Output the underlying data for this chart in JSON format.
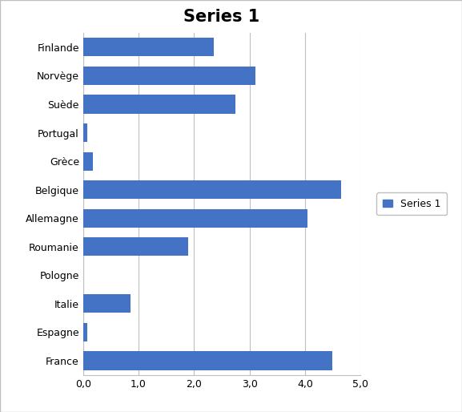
{
  "title": "Series 1",
  "title_fontsize": 15,
  "title_fontweight": "bold",
  "categories": [
    "France",
    "Espagne",
    "Italie",
    "Pologne",
    "Roumanie",
    "Allemagne",
    "Belgique",
    "Grèce",
    "Portugal",
    "Suède",
    "Norvège",
    "Finlande"
  ],
  "values": [
    4.5,
    0.07,
    0.85,
    0.0,
    1.9,
    4.05,
    4.65,
    0.18,
    0.07,
    2.75,
    3.1,
    2.35
  ],
  "bar_color": "#4472C4",
  "xlim": [
    0,
    5.0
  ],
  "xticks": [
    0.0,
    1.0,
    2.0,
    3.0,
    4.0,
    5.0
  ],
  "xtick_labels": [
    "0,0",
    "1,0",
    "2,0",
    "3,0",
    "4,0",
    "5,0"
  ],
  "legend_label": "Series 1",
  "background_color": "#FFFFFF",
  "grid_color": "#BFBFBF",
  "bar_height": 0.65,
  "figure_border_color": "#BFBFBF",
  "tick_label_fontsize": 9,
  "ytick_label_fontsize": 9
}
